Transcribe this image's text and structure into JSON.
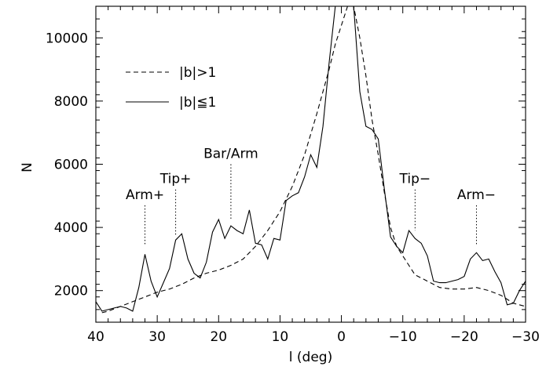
{
  "chart_data": {
    "type": "line",
    "title": "",
    "xlabel": "l (deg)",
    "ylabel": "N",
    "xlim": [
      40,
      -30
    ],
    "ylim": [
      1000,
      11000
    ],
    "xticks": [
      40,
      30,
      20,
      10,
      0,
      -10,
      -20,
      -30
    ],
    "xtick_labels": [
      "40",
      "30",
      "20",
      "10",
      "0",
      "−10",
      "−20",
      "−30"
    ],
    "yticks": [
      2000,
      4000,
      6000,
      8000,
      10000
    ],
    "ytick_labels": [
      "2000",
      "4000",
      "6000",
      "8000",
      "10000"
    ],
    "grid": false,
    "legend_position": "top-left",
    "series": [
      {
        "name": "|b|>1",
        "style": "dashed",
        "color": "#000000",
        "x": [
          39,
          38,
          36,
          34,
          32,
          30,
          28,
          26,
          24,
          22,
          20,
          18,
          16,
          14,
          12,
          10,
          8,
          6,
          4,
          2,
          1,
          0,
          -1,
          -2,
          -3,
          -4,
          -5,
          -6,
          -7,
          -8,
          -9,
          -10,
          -11,
          -12,
          -14,
          -16,
          -18,
          -20,
          -22,
          -24,
          -26,
          -28,
          -30
        ],
        "y": [
          1300,
          1350,
          1500,
          1650,
          1800,
          1950,
          2050,
          2200,
          2400,
          2550,
          2650,
          2800,
          3000,
          3400,
          3900,
          4500,
          5300,
          6300,
          7600,
          9000,
          9800,
          10400,
          11000,
          11000,
          10000,
          8800,
          7400,
          6300,
          5100,
          4000,
          3400,
          3100,
          2800,
          2500,
          2300,
          2100,
          2050,
          2050,
          2100,
          2000,
          1850,
          1600,
          1500
        ]
      },
      {
        "name": "|b|≦1",
        "style": "solid",
        "color": "#000000",
        "x": [
          40,
          39,
          38,
          37,
          36,
          35,
          34,
          33,
          32,
          31,
          30,
          29,
          28,
          27,
          26,
          25,
          24,
          23,
          22,
          21,
          20,
          19,
          18,
          17,
          16,
          15,
          14,
          13,
          12,
          11,
          10,
          9,
          8,
          7,
          6,
          5,
          4,
          3,
          2,
          1,
          0,
          -1,
          -2,
          -3,
          -4,
          -5,
          -6,
          -7,
          -8,
          -9,
          -10,
          -11,
          -12,
          -13,
          -14,
          -15,
          -16,
          -17,
          -18,
          -19,
          -20,
          -21,
          -22,
          -23,
          -24,
          -25,
          -26,
          -27,
          -28,
          -29,
          -30
        ],
        "y": [
          1650,
          1350,
          1400,
          1450,
          1500,
          1450,
          1350,
          2100,
          3150,
          2300,
          1800,
          2250,
          2700,
          3600,
          3800,
          3000,
          2550,
          2400,
          2900,
          3850,
          4250,
          3650,
          4050,
          3900,
          3800,
          4550,
          3500,
          3450,
          3000,
          3650,
          3600,
          4850,
          5000,
          5100,
          5600,
          6300,
          5900,
          7200,
          9200,
          11000,
          11000,
          11000,
          11000,
          8300,
          7200,
          7100,
          6800,
          5200,
          3700,
          3400,
          3200,
          3900,
          3650,
          3500,
          3100,
          2300,
          2250,
          2250,
          2300,
          2350,
          2450,
          3000,
          3200,
          2950,
          3000,
          2600,
          2250,
          1550,
          1600,
          2000,
          2300
        ]
      }
    ],
    "annotations": [
      {
        "label": "Arm+",
        "x": 32,
        "y_top": 4700,
        "y_bottom": 3450
      },
      {
        "label": "Tip+",
        "x": 27,
        "y_top": 5200,
        "y_bottom": 3750
      },
      {
        "label": "Bar/Arm",
        "x": 18,
        "y_top": 6000,
        "y_bottom": 4250
      },
      {
        "label": "Tip−",
        "x": -12,
        "y_top": 5200,
        "y_bottom": 3900
      },
      {
        "label": "Arm−",
        "x": -22,
        "y_top": 4700,
        "y_bottom": 3450
      }
    ]
  }
}
